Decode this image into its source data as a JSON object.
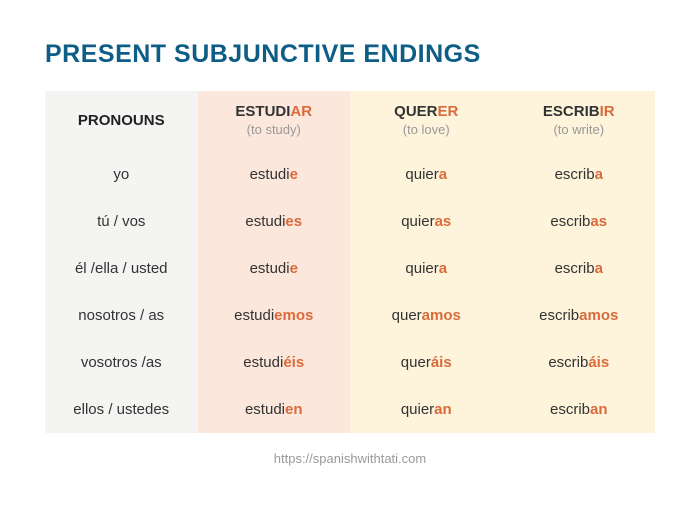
{
  "title": {
    "text": "PRESENT SUBJUNCTIVE ENDINGS",
    "color": "#0e5d86"
  },
  "colors": {
    "pronouns_bg": "#f4f4f2",
    "col1_bg": "#fbe7dc",
    "col2_bg": "#fdf4db",
    "col3_bg": "#fdf4db",
    "ending_ar": "#d96b3c",
    "ending_er_ir": "#d96b3c",
    "header_base": "#333333",
    "gloss": "#999999"
  },
  "pronouns_header": "PRONOUNS",
  "pronouns": [
    "yo",
    "tú / vos",
    "él /ella / usted",
    "nosotros / as",
    "vosotros /as",
    "ellos / ustedes"
  ],
  "verbs": [
    {
      "stem_header": "ESTUDI",
      "ending_header": "AR",
      "gloss": "(to study)",
      "conj": [
        {
          "stem": "estudi",
          "end": "e"
        },
        {
          "stem": "estudi",
          "end": "es"
        },
        {
          "stem": "estudi",
          "end": "e"
        },
        {
          "stem": "estudi",
          "end": "emos"
        },
        {
          "stem": "estudi",
          "end": "éis"
        },
        {
          "stem": "estudi",
          "end": "en"
        }
      ]
    },
    {
      "stem_header": "QUER",
      "ending_header": "ER",
      "gloss": "(to love)",
      "conj": [
        {
          "stem": "quier",
          "end": "a"
        },
        {
          "stem": "quier",
          "end": "as"
        },
        {
          "stem": "quier",
          "end": "a"
        },
        {
          "stem": "quer",
          "end": "amos"
        },
        {
          "stem": "quer",
          "end": "áis"
        },
        {
          "stem": "quier",
          "end": "an"
        }
      ]
    },
    {
      "stem_header": "ESCRIB",
      "ending_header": "IR",
      "gloss": "(to write)",
      "conj": [
        {
          "stem": "escrib",
          "end": "a"
        },
        {
          "stem": "escrib",
          "end": "as"
        },
        {
          "stem": "escrib",
          "end": "a"
        },
        {
          "stem": "escrib",
          "end": "amos"
        },
        {
          "stem": "escrib",
          "end": "áis"
        },
        {
          "stem": "escrib",
          "end": "an"
        }
      ]
    }
  ],
  "footer": "https://spanishwithtati.com"
}
